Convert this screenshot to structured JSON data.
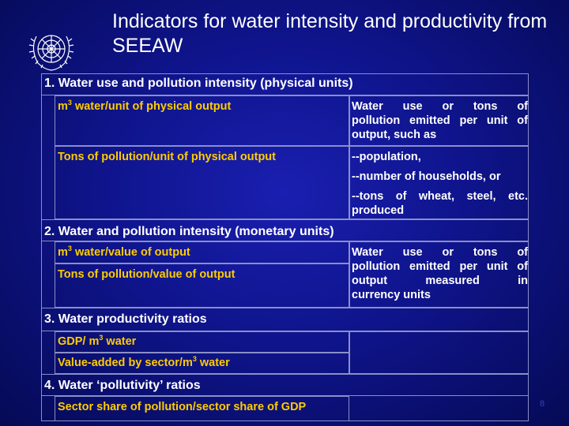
{
  "title": "Indicators for water intensity and productivity from SEEAW",
  "sections": [
    {
      "heading": "1. Water use and pollution intensity (physical units)",
      "items": [
        {
          "pre": "m",
          "sup": "3",
          "post": " water/unit of physical output"
        },
        {
          "text": "Tons of pollution/unit of physical output"
        }
      ],
      "description": [
        "Water use or tons of",
        "pollution emitted per unit of",
        "output, such as"
      ],
      "examples": [
        "--population,",
        "--number of households, or",
        "--tons of wheat, steel, etc.",
        "produced"
      ]
    },
    {
      "heading": "2. Water and pollution intensity (monetary units)",
      "items": [
        {
          "pre": "m",
          "sup": "3",
          "post": " water/value of output"
        },
        {
          "text": "Tons of pollution/value of output"
        }
      ],
      "description": [
        "Water use or tons of",
        "pollution emitted per unit of",
        "output measured in",
        "currency units"
      ]
    },
    {
      "heading": "3. Water productivity ratios",
      "items": [
        {
          "pre": "GDP/ m",
          "sup": "3",
          "post": " water"
        },
        {
          "pre": "Value-added by sector/m",
          "sup": "3",
          "post": " water"
        }
      ]
    },
    {
      "heading": "4. Water ‘pollutivity’ ratios",
      "items": [
        {
          "text": "Sector share of pollution/sector share of GDP"
        }
      ]
    }
  ],
  "page_number": "8",
  "colors": {
    "background": "#0f148c",
    "heading": "#ffffff",
    "item": "#ffcc00",
    "border": "#8a8fc8"
  },
  "logo": "united-nations-emblem"
}
